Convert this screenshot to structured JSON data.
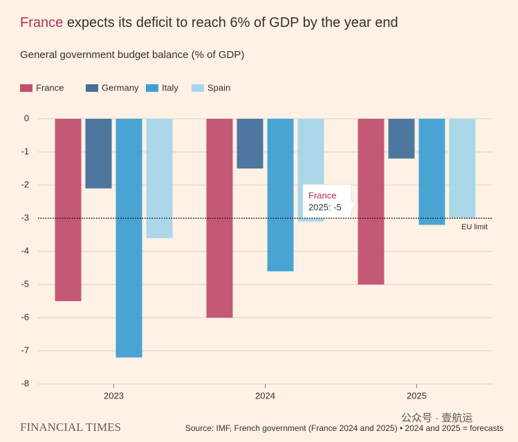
{
  "chart_data": {
    "type": "bar",
    "title": {
      "highlight": "France",
      "rest": "expects its deficit to reach 6% of GDP by the year end"
    },
    "subtitle": "General government budget balance (% of GDP)",
    "categories": [
      "2023",
      "2024",
      "2025"
    ],
    "series": [
      {
        "name": "France",
        "color": "#c0506f",
        "values": [
          -5.5,
          -6.0,
          -5.0
        ]
      },
      {
        "name": "Germany",
        "color": "#44709b",
        "values": [
          -2.1,
          -1.5,
          -1.2
        ]
      },
      {
        "name": "Italy",
        "color": "#3f9fd3",
        "values": [
          -7.2,
          -4.6,
          -3.2
        ]
      },
      {
        "name": "Spain",
        "color": "#a6d6e8",
        "values": [
          -3.6,
          -3.1,
          -3.0
        ]
      }
    ],
    "ylim": [
      -8,
      0
    ],
    "yticks": [
      0,
      -1,
      -2,
      -3,
      -4,
      -5,
      -6,
      -7,
      -8
    ],
    "grid": true,
    "reference_line": {
      "value": -3,
      "label": "EU limit"
    },
    "tooltip": {
      "series": "France",
      "label": "2025: -5"
    },
    "source": "Source: IMF, French government (France 2024 and 2025) • 2024 and 2025 = forecasts",
    "brand": "FINANCIAL TIMES",
    "watermark": "公众号 · 壹航运"
  }
}
